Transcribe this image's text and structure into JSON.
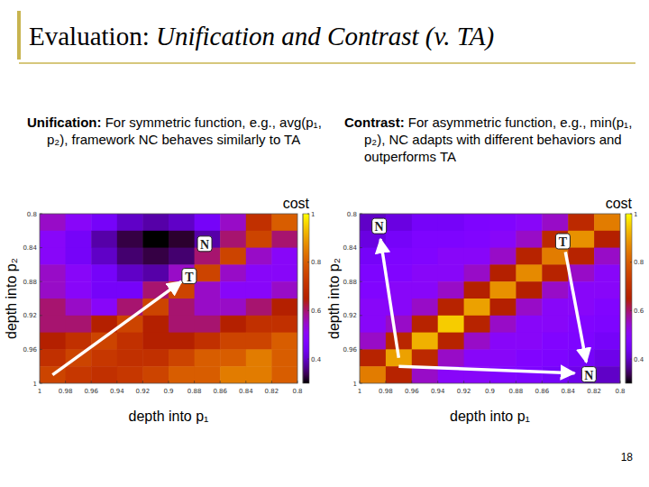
{
  "slide": {
    "title": "Evaluation:",
    "title_italic": "Unification and Contrast (v. TA)",
    "page": "18",
    "panels": [
      {
        "heading": "Unification:",
        "text": "For symmetric function, e.g., avg(p₁, p₂), framework NC behaves similarly to TA"
      },
      {
        "heading": "Contrast:",
        "text": "For asymmetric function, e.g., min(p₁, p₂), NC adapts with different behaviors and outperforms TA"
      }
    ]
  },
  "chart_data": [
    {
      "type": "heatmap",
      "x_label": "depth into p₁",
      "y_label": "depth into p₂",
      "xlim": [
        1,
        0.8
      ],
      "ylim": [
        1,
        0.8
      ],
      "xticks": [
        1,
        0.98,
        0.96,
        0.94,
        0.92,
        0.9,
        0.88,
        0.86,
        0.84,
        0.82,
        0.8
      ],
      "yticks": [
        1,
        0.96,
        0.92,
        0.88,
        0.84,
        0.8
      ],
      "x": [
        0.99,
        0.97,
        0.95,
        0.93,
        0.91,
        0.89,
        0.87,
        0.85,
        0.83,
        0.81
      ],
      "y": [
        0.81,
        0.83,
        0.85,
        0.87,
        0.89,
        0.91,
        0.93,
        0.95,
        0.97,
        0.99
      ],
      "cells": [
        [
          0.55,
          0.5,
          0.45,
          0.4,
          0.38,
          0.4,
          0.45,
          0.55,
          0.7,
          0.8
        ],
        [
          0.5,
          0.45,
          0.38,
          0.33,
          0.3,
          0.32,
          0.38,
          0.6,
          0.75,
          0.6
        ],
        [
          0.5,
          0.45,
          0.4,
          0.35,
          0.33,
          0.35,
          0.6,
          0.75,
          0.55,
          0.5
        ],
        [
          0.55,
          0.5,
          0.45,
          0.4,
          0.38,
          0.55,
          0.75,
          0.55,
          0.5,
          0.5
        ],
        [
          0.55,
          0.5,
          0.45,
          0.45,
          0.6,
          0.75,
          0.55,
          0.5,
          0.5,
          0.55
        ],
        [
          0.6,
          0.55,
          0.5,
          0.6,
          0.75,
          0.6,
          0.55,
          0.55,
          0.6,
          0.65
        ],
        [
          0.6,
          0.6,
          0.65,
          0.75,
          0.65,
          0.6,
          0.6,
          0.65,
          0.7,
          0.7
        ],
        [
          0.65,
          0.7,
          0.75,
          0.7,
          0.65,
          0.65,
          0.7,
          0.75,
          0.75,
          0.8
        ],
        [
          0.7,
          0.75,
          0.72,
          0.7,
          0.7,
          0.75,
          0.8,
          0.8,
          0.85,
          0.8
        ],
        [
          0.75,
          0.72,
          0.7,
          0.72,
          0.75,
          0.8,
          0.8,
          0.85,
          0.85,
          0.8
        ]
      ],
      "colorbar": {
        "label": "cost",
        "range": [
          0.3,
          1
        ],
        "ticks": [
          0.4,
          0.6,
          0.8,
          1
        ]
      },
      "annotations": [
        {
          "text": "N",
          "x": 0.872,
          "y": 0.836
        },
        {
          "text": "T",
          "x": 0.884,
          "y": 0.874
        }
      ],
      "arrows": [
        {
          "x0": 0.99,
          "y0": 0.99,
          "x1": 0.89,
          "y1": 0.88
        }
      ]
    },
    {
      "type": "heatmap",
      "x_label": "depth into p₁",
      "y_label": "depth into p₂",
      "xlim": [
        1,
        0.8
      ],
      "ylim": [
        1,
        0.8
      ],
      "xticks": [
        1,
        0.98,
        0.96,
        0.94,
        0.92,
        0.9,
        0.88,
        0.86,
        0.84,
        0.82,
        0.8
      ],
      "yticks": [
        1,
        0.96,
        0.92,
        0.88,
        0.84,
        0.8
      ],
      "x": [
        0.99,
        0.97,
        0.95,
        0.93,
        0.91,
        0.89,
        0.87,
        0.85,
        0.83,
        0.81
      ],
      "y": [
        0.81,
        0.83,
        0.85,
        0.87,
        0.89,
        0.91,
        0.93,
        0.95,
        0.97,
        0.99
      ],
      "cells": [
        [
          0.4,
          0.42,
          0.45,
          0.45,
          0.47,
          0.48,
          0.5,
          0.55,
          0.68,
          0.85
        ],
        [
          0.42,
          0.45,
          0.47,
          0.47,
          0.48,
          0.5,
          0.55,
          0.68,
          0.88,
          0.65
        ],
        [
          0.45,
          0.47,
          0.48,
          0.5,
          0.5,
          0.55,
          0.66,
          0.85,
          0.66,
          0.55
        ],
        [
          0.47,
          0.48,
          0.5,
          0.5,
          0.55,
          0.65,
          0.87,
          0.66,
          0.55,
          0.5
        ],
        [
          0.48,
          0.5,
          0.5,
          0.55,
          0.65,
          0.88,
          0.65,
          0.55,
          0.5,
          0.5
        ],
        [
          0.5,
          0.5,
          0.55,
          0.66,
          0.9,
          0.65,
          0.55,
          0.5,
          0.5,
          0.48
        ],
        [
          0.5,
          0.55,
          0.66,
          0.95,
          0.66,
          0.55,
          0.5,
          0.5,
          0.48,
          0.47
        ],
        [
          0.55,
          0.67,
          0.92,
          0.66,
          0.55,
          0.5,
          0.5,
          0.48,
          0.47,
          0.45
        ],
        [
          0.66,
          0.9,
          0.68,
          0.55,
          0.5,
          0.5,
          0.48,
          0.47,
          0.45,
          0.43
        ],
        [
          0.85,
          0.66,
          0.55,
          0.5,
          0.5,
          0.48,
          0.47,
          0.45,
          0.43,
          0.4
        ]
      ],
      "colorbar": {
        "label": "cost",
        "range": [
          0.3,
          1
        ],
        "ticks": [
          0.4,
          0.6,
          0.8,
          1
        ]
      },
      "annotations": [
        {
          "text": "N",
          "x": 0.985,
          "y": 0.815
        },
        {
          "text": "T",
          "x": 0.844,
          "y": 0.833
        },
        {
          "text": "N",
          "x": 0.824,
          "y": 0.99
        }
      ],
      "arrows": [
        {
          "x0": 0.97,
          "y0": 0.97,
          "x1": 0.984,
          "y1": 0.83
        },
        {
          "x0": 0.97,
          "y0": 0.98,
          "x1": 0.835,
          "y1": 0.988
        },
        {
          "x0": 0.842,
          "y0": 0.845,
          "x1": 0.826,
          "y1": 0.975
        }
      ]
    }
  ]
}
